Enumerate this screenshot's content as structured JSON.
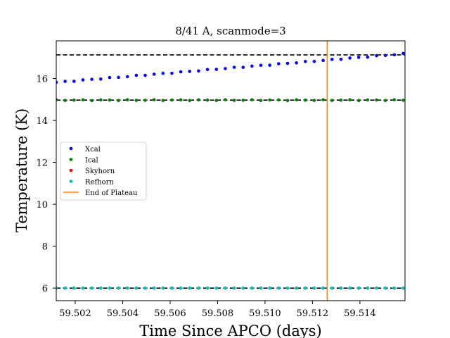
{
  "chart_data": {
    "type": "scatter",
    "title": "8/41 A, scanmode=3",
    "xlabel": "Time Since APCO (days)",
    "ylabel": "Temperature (K)",
    "xlim": [
      59.5012,
      59.5159
    ],
    "ylim": [
      5.4,
      17.8
    ],
    "x_ticks": [
      59.502,
      59.504,
      59.506,
      59.508,
      59.51,
      59.512,
      59.514
    ],
    "x_tick_labels": [
      "59.502",
      "59.504",
      "59.506",
      "59.508",
      "59.510",
      "59.512",
      "59.514"
    ],
    "y_ticks": [
      6,
      8,
      10,
      12,
      14,
      16
    ],
    "y_tick_labels": [
      "6",
      "8",
      "10",
      "12",
      "14",
      "16"
    ],
    "grid": false,
    "legend_position": "center-left",
    "x_start": 59.5012,
    "x_step": 0.000375,
    "n_points": 40,
    "series": [
      {
        "name": "Xcal",
        "color": "#0000ff",
        "start": 15.82,
        "end": 17.18,
        "jitter": 0.02
      },
      {
        "name": "Ical",
        "color": "#008000",
        "start": 14.97,
        "end": 14.97,
        "jitter": 0.02
      },
      {
        "name": "Skyhorn",
        "color": "#ff0000",
        "start": 6.0,
        "end": 6.0,
        "jitter": 0.0
      },
      {
        "name": "Refhorn",
        "color": "#00bfbf",
        "start": 6.0,
        "end": 6.0,
        "jitter": 0.0
      }
    ],
    "reference_lines": [
      17.13,
      14.97,
      6.0
    ],
    "vertical_line": {
      "name": "End of Plateau",
      "x": 59.51262,
      "color": "#ff7f0e"
    }
  }
}
